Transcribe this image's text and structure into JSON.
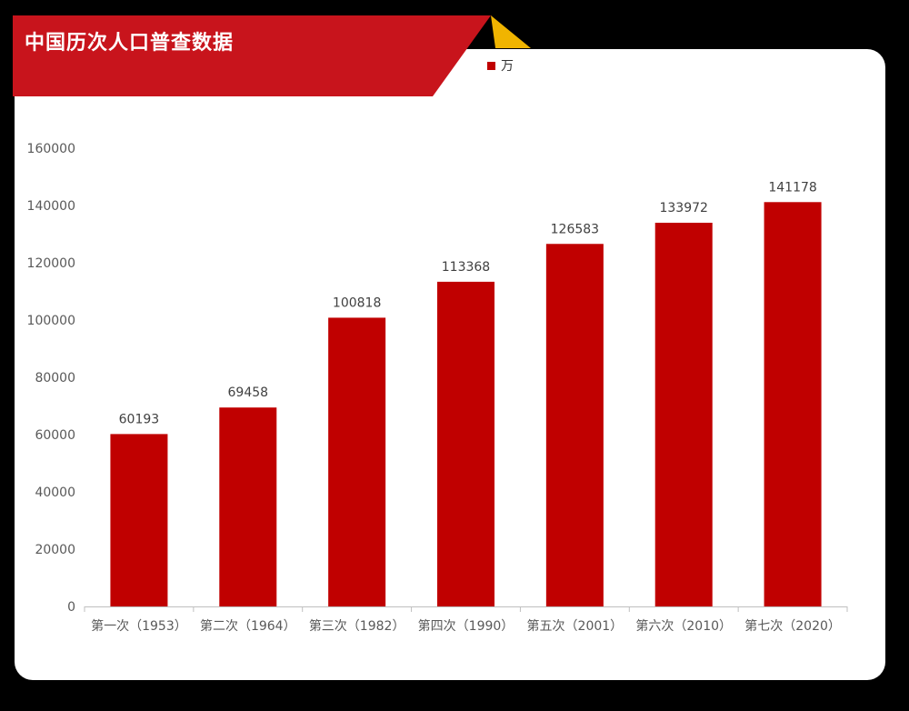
{
  "title": "中国历次人口普查数据",
  "colors": {
    "bar": "#c00000",
    "banner": "#c8141c",
    "banner_accent": "#f0b400",
    "background": "#000000",
    "card": "#ffffff"
  },
  "chart_data": {
    "type": "bar",
    "title": "中国历次人口普查数据",
    "categories": [
      "第一次（1953）",
      "第二次（1964）",
      "第三次（1982）",
      "第四次（1990）",
      "第五次（2001）",
      "第六次（2010）",
      "第七次（2020）"
    ],
    "series": [
      {
        "name": "万",
        "values": [
          60193,
          69458,
          100818,
          113368,
          126583,
          133972,
          141178
        ]
      }
    ],
    "ylim": [
      0,
      160000
    ],
    "yticks": [
      0,
      20000,
      40000,
      60000,
      80000,
      100000,
      120000,
      140000,
      160000
    ],
    "grid": false,
    "legend": "top-center",
    "data_labels": true
  }
}
